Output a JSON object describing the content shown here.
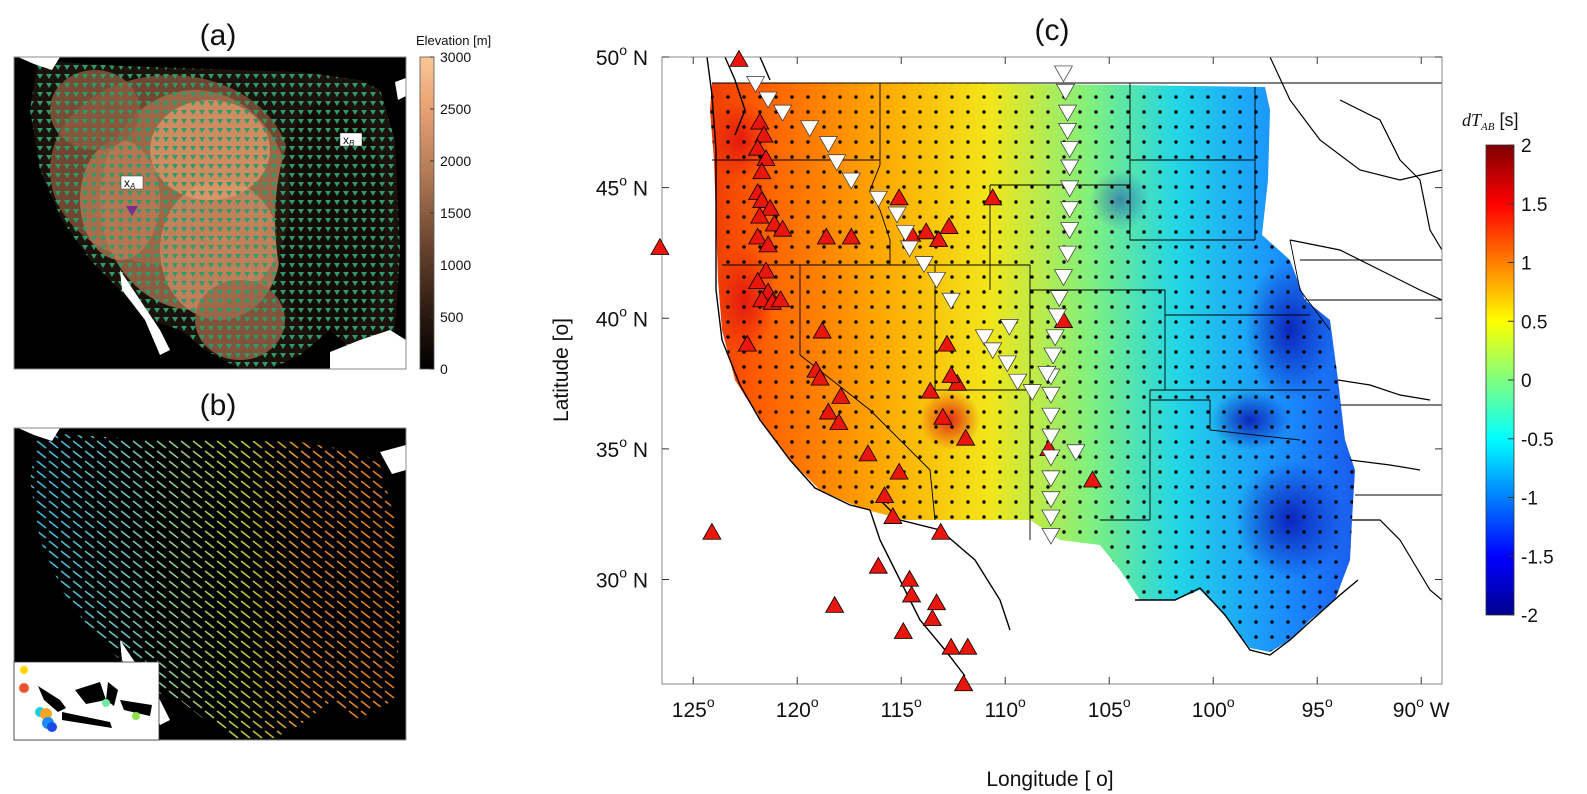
{
  "panel_a": {
    "label": "(a)",
    "colorbar_title": "Elevation [m]",
    "colorbar_ticks": [
      "3000",
      "2500",
      "2000",
      "1500",
      "1000",
      "500",
      "0"
    ],
    "colorbar_values": [
      3000,
      2500,
      2000,
      1500,
      1000,
      500,
      0
    ],
    "marker_a": "x",
    "marker_a_sub": "A",
    "marker_b": "x",
    "marker_b_sub": "B",
    "colors": {
      "station": "#2e9b6a",
      "source": "#7a2f8f",
      "water": "#ffffff",
      "high": "#f6c08c",
      "low": "#000000"
    }
  },
  "panel_b": {
    "label": "(b)",
    "colors": {
      "west": "#2fb6e6",
      "mid": "#b8d13a",
      "east": "#e58a2b",
      "background": "#000000"
    }
  },
  "panel_c": {
    "label": "(c)",
    "xlabel": "Longitude [ o]",
    "ylabel": "Latitude [o]",
    "x_ticks": [
      {
        "value": 125,
        "text": "125",
        "sup": "o",
        "suffix": ""
      },
      {
        "value": 120,
        "text": "120",
        "sup": "o",
        "suffix": ""
      },
      {
        "value": 115,
        "text": "115",
        "sup": "o",
        "suffix": ""
      },
      {
        "value": 110,
        "text": "110",
        "sup": "o",
        "suffix": ""
      },
      {
        "value": 105,
        "text": "105",
        "sup": "o",
        "suffix": ""
      },
      {
        "value": 100,
        "text": "100",
        "sup": "o",
        "suffix": ""
      },
      {
        "value": 95,
        "text": "95",
        "sup": "o",
        "suffix": ""
      },
      {
        "value": 90,
        "text": "90",
        "sup": "o",
        "suffix": " W"
      }
    ],
    "y_ticks": [
      {
        "value": 50,
        "text": "50",
        "sup": "o",
        "suffix": " N"
      },
      {
        "value": 45,
        "text": "45",
        "sup": "o",
        "suffix": " N"
      },
      {
        "value": 40,
        "text": "40",
        "sup": "o",
        "suffix": " N"
      },
      {
        "value": 35,
        "text": "35",
        "sup": "o",
        "suffix": " N"
      },
      {
        "value": 30,
        "text": "30",
        "sup": "o",
        "suffix": " N"
      }
    ],
    "xlim_west": [
      126.5,
      89
    ],
    "ylim": [
      26,
      50
    ],
    "colorbar_title": "dT",
    "colorbar_title_sub": "AB",
    "colorbar_unit": " [s]",
    "colorbar_ticks": [
      "2",
      "1.5",
      "1",
      "0.5",
      "0",
      "-0.5",
      "-1",
      "-1.5",
      "-2"
    ],
    "colorbar_values": [
      2,
      1.5,
      1,
      0.5,
      0,
      -0.5,
      -1,
      -1.5,
      -2
    ],
    "clim": [
      -2,
      2
    ],
    "volcano_color": "#e8160c",
    "white_triangle_color": "#ffffff",
    "volcanoes_lonW_lat": [
      [
        122.8,
        49.9
      ],
      [
        126.6,
        42.7
      ],
      [
        124.1,
        31.8
      ],
      [
        121.8,
        47.5
      ],
      [
        121.6,
        47.0
      ],
      [
        121.9,
        46.5
      ],
      [
        121.5,
        46.1
      ],
      [
        121.7,
        45.6
      ],
      [
        121.9,
        44.8
      ],
      [
        121.7,
        44.5
      ],
      [
        121.3,
        44.2
      ],
      [
        121.8,
        43.9
      ],
      [
        121.1,
        43.6
      ],
      [
        120.7,
        43.4
      ],
      [
        121.9,
        43.1
      ],
      [
        121.4,
        42.8
      ],
      [
        121.5,
        41.8
      ],
      [
        121.9,
        41.4
      ],
      [
        121.4,
        41.0
      ],
      [
        121.7,
        40.7
      ],
      [
        121.2,
        40.6
      ],
      [
        120.8,
        40.7
      ],
      [
        122.4,
        39.0
      ],
      [
        118.8,
        39.5
      ],
      [
        119.1,
        38.0
      ],
      [
        118.9,
        37.7
      ],
      [
        117.9,
        37.0
      ],
      [
        118.5,
        36.4
      ],
      [
        118.0,
        36.0
      ],
      [
        116.6,
        34.8
      ],
      [
        115.1,
        34.1
      ],
      [
        115.8,
        33.2
      ],
      [
        115.4,
        32.4
      ],
      [
        118.6,
        43.1
      ],
      [
        117.4,
        43.1
      ],
      [
        115.1,
        44.6
      ],
      [
        114.5,
        43.2
      ],
      [
        113.8,
        43.3
      ],
      [
        113.2,
        43.0
      ],
      [
        112.7,
        43.5
      ],
      [
        112.3,
        37.5
      ],
      [
        113.0,
        36.2
      ],
      [
        112.8,
        39.0
      ],
      [
        112.6,
        37.8
      ],
      [
        113.6,
        37.2
      ],
      [
        111.9,
        35.4
      ],
      [
        113.1,
        31.8
      ],
      [
        116.1,
        30.5
      ],
      [
        114.6,
        30.0
      ],
      [
        114.5,
        29.4
      ],
      [
        113.3,
        29.1
      ],
      [
        113.5,
        28.5
      ],
      [
        114.9,
        28.0
      ],
      [
        112.6,
        27.4
      ],
      [
        111.8,
        27.4
      ],
      [
        112.0,
        26.0
      ],
      [
        118.2,
        29.0
      ],
      [
        107.2,
        39.9
      ],
      [
        107.9,
        35.0
      ],
      [
        105.8,
        33.8
      ],
      [
        110.6,
        44.6
      ]
    ],
    "white_triangles_lonW_lat": [
      [
        122.0,
        49.0
      ],
      [
        121.4,
        48.4
      ],
      [
        120.7,
        47.9
      ],
      [
        119.4,
        47.3
      ],
      [
        118.5,
        46.7
      ],
      [
        118.1,
        46.0
      ],
      [
        117.4,
        45.3
      ],
      [
        116.1,
        44.6
      ],
      [
        115.2,
        44.0
      ],
      [
        114.8,
        43.3
      ],
      [
        114.6,
        42.7
      ],
      [
        113.9,
        42.1
      ],
      [
        113.3,
        41.5
      ],
      [
        112.6,
        40.7
      ],
      [
        111.0,
        39.3
      ],
      [
        110.6,
        38.8
      ],
      [
        109.9,
        38.3
      ],
      [
        109.4,
        37.6
      ],
      [
        108.7,
        37.2
      ],
      [
        107.2,
        49.4
      ],
      [
        107.1,
        48.7
      ],
      [
        107.0,
        47.9
      ],
      [
        107.0,
        47.2
      ],
      [
        106.9,
        46.5
      ],
      [
        106.9,
        45.8
      ],
      [
        106.9,
        45.0
      ],
      [
        106.9,
        44.2
      ],
      [
        106.9,
        43.4
      ],
      [
        107.0,
        42.5
      ],
      [
        107.2,
        41.6
      ],
      [
        107.4,
        40.8
      ],
      [
        107.5,
        40.1
      ],
      [
        107.6,
        39.3
      ],
      [
        107.7,
        38.6
      ],
      [
        107.8,
        37.8
      ],
      [
        107.8,
        37.1
      ],
      [
        107.8,
        36.3
      ],
      [
        107.8,
        35.5
      ],
      [
        107.8,
        34.7
      ],
      [
        107.8,
        33.9
      ],
      [
        107.8,
        33.1
      ],
      [
        107.8,
        32.4
      ],
      [
        107.8,
        31.7
      ],
      [
        106.6,
        34.9
      ],
      [
        109.8,
        39.7
      ],
      [
        108.0,
        37.9
      ]
    ]
  }
}
